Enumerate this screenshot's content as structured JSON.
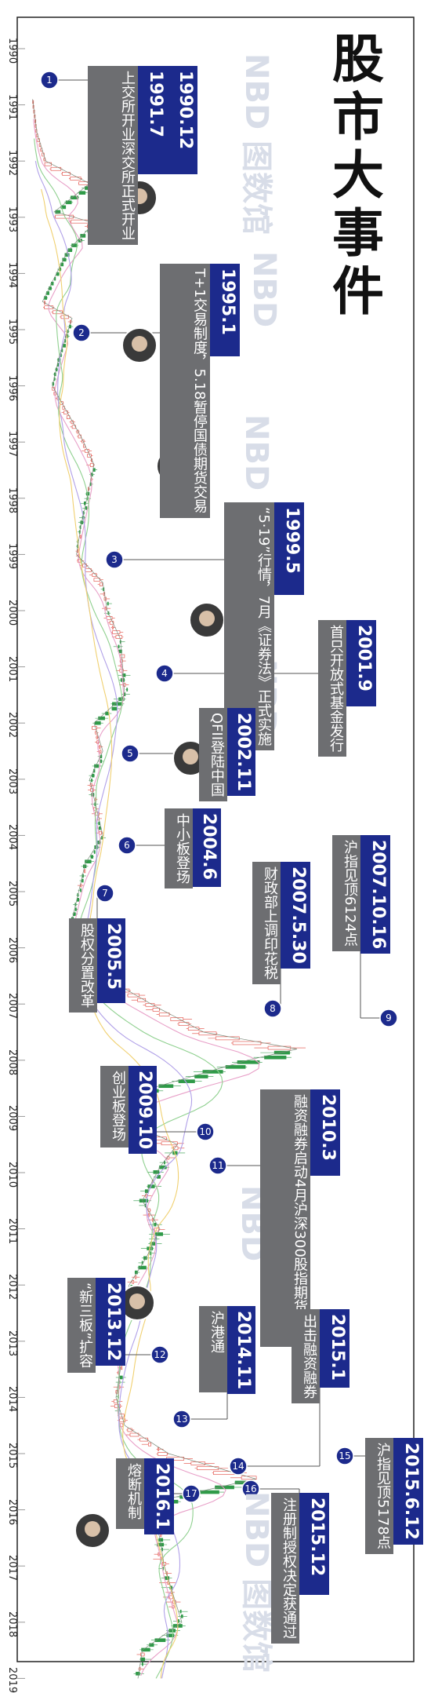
{
  "title": "股市大事件",
  "watermark": [
    "NBD 图数馆",
    "NBD",
    "NBD",
    "NBD",
    "NBD",
    "NBD 图数馆"
  ],
  "colors": {
    "accent": "#1c2a8c",
    "gray_box": "#6d6e71",
    "up": "#e0463c",
    "down": "#2f9a48"
  },
  "chart_data": {
    "type": "line",
    "title": "股市大事件",
    "xlabel": "",
    "ylabel": "",
    "x_ticks": [
      "1990",
      "1991",
      "1992",
      "1993",
      "1994",
      "1995",
      "1996",
      "1997",
      "1998",
      "1999",
      "2000",
      "2001",
      "2002",
      "2003",
      "2004",
      "2005",
      "2006",
      "2007",
      "2008",
      "2009",
      "2010",
      "2011",
      "2012",
      "2013",
      "2014",
      "2015",
      "2016",
      "2017",
      "2018",
      "2019"
    ],
    "index_series": {
      "x": [
        1990.9,
        1991.5,
        1992.0,
        1992.4,
        1992.9,
        1993.1,
        1993.6,
        1994.5,
        1994.8,
        1995.5,
        1996.0,
        1996.9,
        1997.4,
        1998.5,
        1999.0,
        1999.5,
        2000.0,
        2000.5,
        2001.5,
        2002.0,
        2002.5,
        2003.0,
        2004.0,
        2004.5,
        2005.5,
        2006.0,
        2006.5,
        2007.0,
        2007.5,
        2007.8,
        2008.0,
        2008.5,
        2008.9,
        2009.5,
        2009.9,
        2010.5,
        2011.0,
        2011.5,
        2012.0,
        2012.9,
        2013.5,
        2014.0,
        2014.5,
        2015.0,
        2015.45,
        2015.8,
        2016.0,
        2016.5,
        2017.0,
        2017.5,
        2018.0,
        2018.5,
        2019.0
      ],
      "y": [
        100,
        200,
        400,
        1400,
        600,
        1500,
        900,
        325,
        1000,
        700,
        550,
        1200,
        1500,
        1200,
        1100,
        1700,
        1800,
        2100,
        2200,
        1500,
        1700,
        1400,
        1700,
        1300,
        1000,
        1200,
        1700,
        2800,
        4000,
        6124,
        5000,
        2800,
        1700,
        3400,
        3000,
        2600,
        3000,
        2700,
        2300,
        2000,
        2100,
        2000,
        2200,
        3200,
        5178,
        3200,
        2800,
        3000,
        3100,
        3300,
        3500,
        2600,
        2500
      ]
    },
    "events": [
      {
        "num": "1",
        "date": "1990.12",
        "date2": "1991.7",
        "text": "上交所开业",
        "text2": "深交所正式开业"
      },
      {
        "num": "2",
        "date": "1995.1",
        "text": "T+1交易制度，",
        "text2": "5.18暂停国债期货交易"
      },
      {
        "num": "3",
        "date": "1999.5",
        "text": "“5·19”行情，",
        "text2": "7月《证券法》正式实施"
      },
      {
        "num": "4",
        "date": "2001.9",
        "text": "首只开放式基金发行"
      },
      {
        "num": "5",
        "date": "2002.11",
        "text": "QFII登陆中国"
      },
      {
        "num": "6",
        "date": "2004.6",
        "text": "中小板登场"
      },
      {
        "num": "7",
        "date": "2005.5",
        "text": "股权分置改革"
      },
      {
        "num": "8",
        "date": "2007.5.30",
        "text": "财政部上调印花税"
      },
      {
        "num": "9",
        "date": "2007.10.16",
        "text": "沪指见顶6124点"
      },
      {
        "num": "10",
        "date": "2009.10",
        "text": "创业板登场"
      },
      {
        "num": "11",
        "date": "2010.3",
        "text": "融资融券启动",
        "text2": "4月沪深300股指期货上市"
      },
      {
        "num": "12",
        "date": "2013.12",
        "text": "“新三板”扩容"
      },
      {
        "num": "13",
        "date": "2014.11",
        "text": "沪港通"
      },
      {
        "num": "14",
        "date": "2015.1",
        "text": "出击融资融券"
      },
      {
        "num": "15",
        "date": "2015.6.12",
        "text": "沪指见顶5178点"
      },
      {
        "num": "16",
        "date": "2015.12",
        "text": "注册制授权决定获通过"
      },
      {
        "num": "17",
        "date": "2016.1",
        "text": "熔断机制"
      }
    ]
  }
}
